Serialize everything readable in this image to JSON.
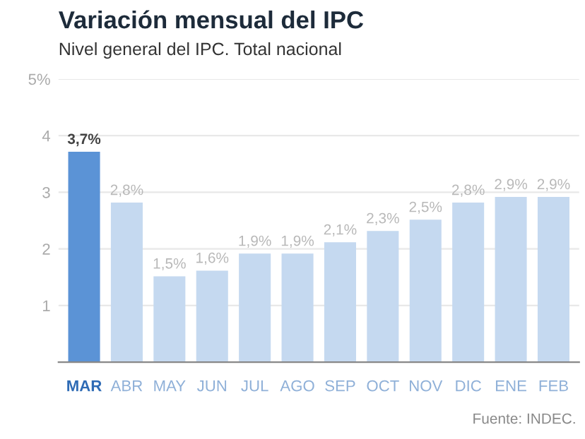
{
  "chart_data": {
    "type": "bar",
    "title": "Variación mensual del IPC",
    "subtitle": "Nivel general del IPC. Total nacional",
    "categories": [
      "MAR",
      "ABR",
      "MAY",
      "JUN",
      "JUL",
      "AGO",
      "SEP",
      "OCT",
      "NOV",
      "DIC",
      "ENE",
      "FEB"
    ],
    "values": [
      3.7,
      2.8,
      1.5,
      1.6,
      1.9,
      1.9,
      2.1,
      2.3,
      2.5,
      2.8,
      2.9,
      2.9
    ],
    "value_labels": [
      "3,7%",
      "2,8%",
      "1,5%",
      "1,6%",
      "1,9%",
      "1,9%",
      "2,1%",
      "2,3%",
      "2,5%",
      "2,8%",
      "2,9%",
      "2,9%"
    ],
    "colors": [
      "#5b93d6",
      "#c5d9f0",
      "#c5d9f0",
      "#c5d9f0",
      "#c5d9f0",
      "#c5d9f0",
      "#c5d9f0",
      "#c5d9f0",
      "#c5d9f0",
      "#c5d9f0",
      "#c5d9f0",
      "#c5d9f0"
    ],
    "ylim": [
      0,
      5
    ],
    "yticks": [
      1,
      2,
      3,
      4,
      {
        "value": 5,
        "label": "5%"
      }
    ],
    "grid": "y",
    "annotations": [
      "Fuente: INDEC."
    ]
  }
}
